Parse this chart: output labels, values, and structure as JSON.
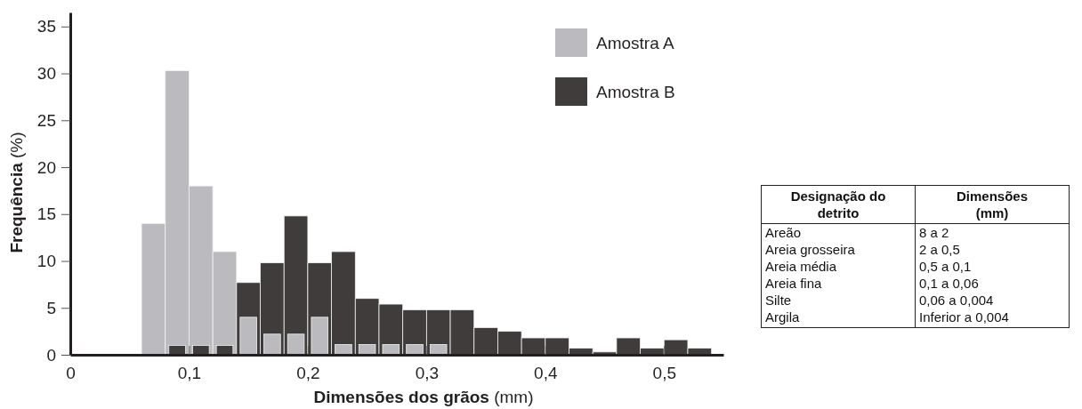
{
  "chart_data": [
    {
      "type": "histogram",
      "xlabel": "Dimensões dos grãos (mm)",
      "ylabel": "Frequência (%)",
      "bins": [
        0.06,
        0.08,
        0.1,
        0.12,
        0.14,
        0.16,
        0.18,
        0.2,
        0.22,
        0.24,
        0.26,
        0.28,
        0.3,
        0.32,
        0.34,
        0.36,
        0.38,
        0.4,
        0.42,
        0.44,
        0.46,
        0.48,
        0.5,
        0.52,
        0.54
      ],
      "series": [
        {
          "name": "Amostra A",
          "color": "#bbbbbf",
          "values": [
            14,
            30.3,
            18,
            11,
            4,
            2.2,
            2.2,
            4,
            1.1,
            1.1,
            1.1,
            1.1,
            1.1,
            0,
            0,
            0,
            0,
            0,
            0,
            0,
            0,
            0,
            0,
            0
          ]
        },
        {
          "name": "Amostra B",
          "color": "#403c3c",
          "values": [
            0,
            1,
            1,
            1,
            7.7,
            9.8,
            14.8,
            9.8,
            11,
            6,
            5.4,
            4.8,
            4.8,
            4.8,
            2.9,
            2.5,
            1.8,
            1.8,
            0.7,
            0.3,
            1.8,
            0.7,
            1.6,
            0.7
          ]
        }
      ],
      "xlim": [
        0,
        0.55
      ],
      "xticks": [
        0,
        {
          "value": 0.1,
          "label": "0,1"
        },
        {
          "value": 0.2,
          "label": "0,2"
        },
        {
          "value": 0.3,
          "label": "0,3"
        },
        {
          "value": 0.4,
          "label": "0,4"
        },
        {
          "value": 0.5,
          "label": "0,5"
        }
      ],
      "ylim": [
        0,
        36.5
      ],
      "yticks": [
        0,
        5,
        10,
        15,
        20,
        25,
        30,
        35
      ],
      "grid": false,
      "legend": "top right"
    },
    {
      "type": "other",
      "annotations": [
        "Designação do detrito",
        "Dimensões (mm)",
        "Areão",
        "8 a 2",
        "Areia grosseira",
        "2 a 0,5",
        "Areia média",
        "0,5 a 0,1",
        "Areia fina",
        "0,1 a 0,06",
        "Silte",
        "0,06 a 0,004",
        "Argila",
        "Inferior a 0,004"
      ]
    }
  ]
}
